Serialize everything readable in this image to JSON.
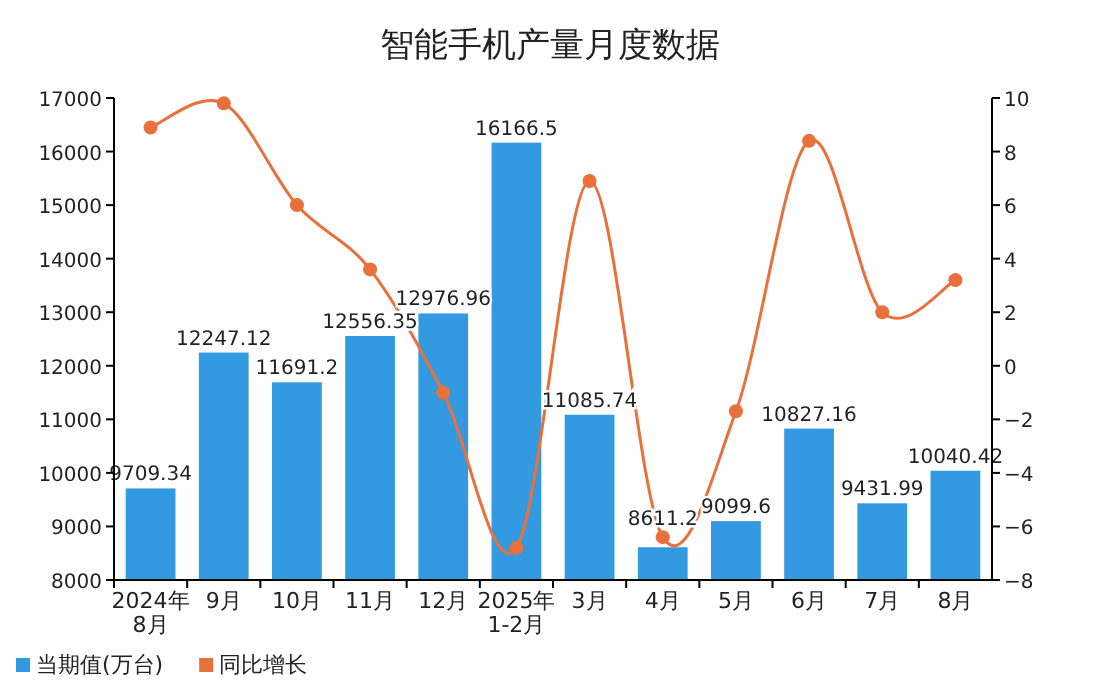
{
  "chart_data": {
    "type": "bar",
    "title": "智能手机产量月度数据",
    "categories": [
      "2024年\n8月",
      "9月",
      "10月",
      "11月",
      "12月",
      "2025年\n1-2月",
      "3月",
      "4月",
      "5月",
      "6月",
      "7月",
      "8月"
    ],
    "series": [
      {
        "name": "当期值(万台)",
        "color": "#3399e0",
        "values": [
          9709.34,
          12247.12,
          11691.2,
          12556.35,
          12976.96,
          16166.5,
          11085.74,
          8611.2,
          9099.6,
          10827.16,
          9431.99,
          10040.42
        ],
        "value_labels": [
          "9709.34",
          "12247.12",
          "11691.2",
          "12556.35",
          "12976.96",
          "16166.5",
          "11085.74",
          "8611.2",
          "9099.6",
          "10827.16",
          "9431.99",
          "10040.42"
        ]
      },
      {
        "name": "同比增长",
        "type": "line",
        "axis": "y2",
        "color": "#e8703a",
        "marker": "circle",
        "values": [
          8.9,
          9.8,
          6.0,
          3.6,
          -1.0,
          -6.8,
          6.9,
          -6.4,
          -1.7,
          8.4,
          2.0,
          3.2
        ]
      }
    ],
    "ylim": [
      8000,
      17000
    ],
    "yticks": [
      8000,
      9000,
      10000,
      11000,
      12000,
      13000,
      14000,
      15000,
      16000,
      17000
    ],
    "y2lim": [
      -8,
      10
    ],
    "y2ticks": [
      -8,
      -6,
      -4,
      -2,
      0,
      2,
      4,
      6,
      8,
      10
    ],
    "grid": false,
    "legend": "bottom left"
  }
}
